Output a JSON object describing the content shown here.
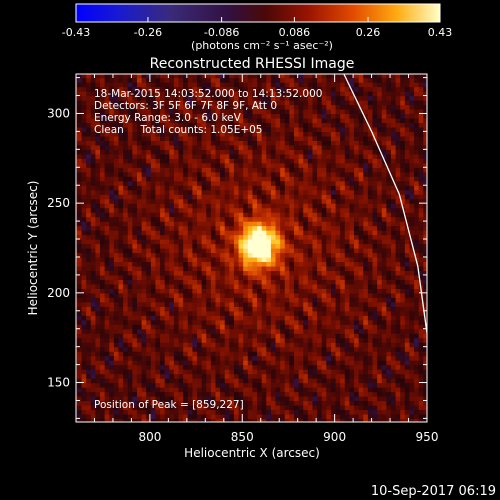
{
  "chart_data": {
    "type": "heatmap",
    "title": "Reconstructed RHESSI Image",
    "xlabel": "Heliocentric X (arcsec)",
    "ylabel": "Heliocentric Y (arcsec)",
    "xlim": [
      760,
      950
    ],
    "ylim": [
      128,
      322
    ],
    "x_ticks": [
      800,
      850,
      900,
      950
    ],
    "y_ticks": [
      150,
      200,
      250,
      300
    ],
    "colorbar": {
      "range": [
        -0.43,
        0.43
      ],
      "tick_labels": [
        "-0.43",
        "-0.26",
        "-0.086",
        "0.086",
        "0.26",
        "0.43"
      ],
      "unit_label": "(photons cm⁻² s⁻¹ asec⁻²)"
    },
    "annotations": [
      "18-Mar-2015 14:03:52.000 to 14:13:52.000",
      "Detectors: 3F 5F 6F 7F 8F 9F, Att 0",
      "Energy Range: 3.0 - 6.0 keV",
      "Clean     Total counts: 1.05E+05"
    ],
    "peak_label": "Position of Peak = [859,227]",
    "peak": {
      "x": 859,
      "y": 227,
      "value": 0.43
    },
    "limb_curve": [
      [
        905,
        322
      ],
      [
        920,
        290
      ],
      [
        935,
        255
      ],
      [
        945,
        215
      ],
      [
        951,
        170
      ],
      [
        952,
        155
      ]
    ],
    "timestamp": "10-Sep-2017 06:19",
    "colors": {
      "background": "#000000",
      "text": "#ffffff",
      "limb": "#ffffff"
    }
  }
}
